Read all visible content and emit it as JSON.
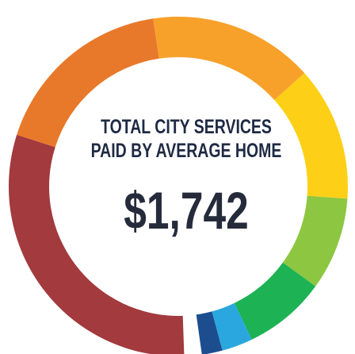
{
  "chart_data": {
    "type": "donut",
    "title_lines": [
      "TOTAL CITY SERVICES",
      "PAID BY AVERAGE HOME"
    ],
    "total_label": "$1,742",
    "values": [
      31,
      18,
      16,
      13,
      9,
      8,
      3,
      2
    ],
    "colors": [
      "#a23a3e",
      "#e8792b",
      "#f7a12b",
      "#fdd017",
      "#8dc641",
      "#1db254",
      "#2aa7df",
      "#1c4e8f"
    ]
  }
}
